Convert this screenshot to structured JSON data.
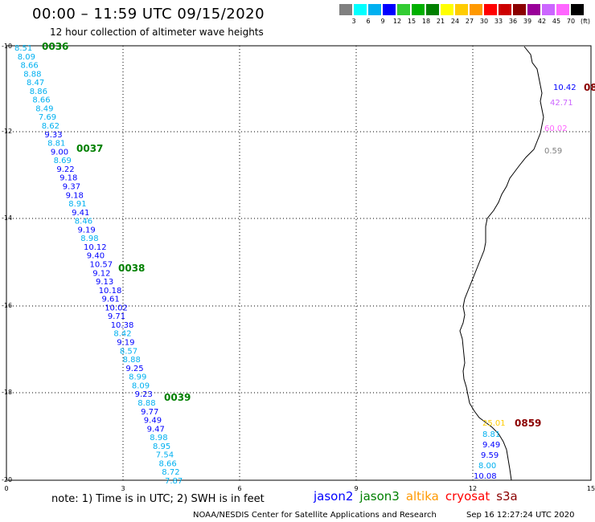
{
  "header": {
    "title": "00:00 – 11:59 UTC 09/15/2020",
    "subtitle": "12 hour collection of altimeter wave heights"
  },
  "colorbar": {
    "colors": [
      "#808080",
      "#00ffff",
      "#00b0f0",
      "#0000ff",
      "#33cc33",
      "#00b000",
      "#008000",
      "#ffff00",
      "#ffcc00",
      "#ff9900",
      "#ff0000",
      "#cc0000",
      "#8b0000",
      "#990099",
      "#cc66ff",
      "#ff66ff",
      "#000000"
    ],
    "labels": [
      "3",
      "6",
      "9",
      "12",
      "15",
      "18",
      "21",
      "24",
      "27",
      "30",
      "33",
      "36",
      "39",
      "42",
      "45",
      "70"
    ],
    "unit": "(ft)"
  },
  "axes": {
    "x_ticks": [
      "0",
      "3",
      "6",
      "9",
      "12",
      "15"
    ],
    "y_ticks": [
      "-10",
      "-12",
      "-14",
      "-16",
      "-18",
      "-20"
    ]
  },
  "passes": [
    {
      "id": "0036",
      "color": "#008000"
    },
    {
      "id": "0037",
      "color": "#008000"
    },
    {
      "id": "0038",
      "color": "#008000"
    },
    {
      "id": "0039",
      "color": "#008000"
    },
    {
      "id": "0859",
      "color": "#8b0000"
    },
    {
      "id": "08",
      "color": "#8b0000"
    }
  ],
  "track_left": [
    {
      "v": "8.51",
      "c": "#00b0f0"
    },
    {
      "v": "8.09",
      "c": "#00b0f0"
    },
    {
      "v": "8.66",
      "c": "#00b0f0"
    },
    {
      "v": "8.88",
      "c": "#00b0f0"
    },
    {
      "v": "8.47",
      "c": "#00b0f0"
    },
    {
      "v": "8.86",
      "c": "#00b0f0"
    },
    {
      "v": "8.66",
      "c": "#00b0f0"
    },
    {
      "v": "8.49",
      "c": "#00b0f0"
    },
    {
      "v": "7.69",
      "c": "#00b0f0"
    },
    {
      "v": "8.62",
      "c": "#00b0f0"
    },
    {
      "v": "9.33",
      "c": "#0000ff"
    },
    {
      "v": "8.81",
      "c": "#00b0f0"
    },
    {
      "v": "9.00",
      "c": "#0000ff"
    },
    {
      "v": "8.69",
      "c": "#00b0f0"
    },
    {
      "v": "9.22",
      "c": "#0000ff"
    },
    {
      "v": "9.18",
      "c": "#0000ff"
    },
    {
      "v": "9.37",
      "c": "#0000ff"
    },
    {
      "v": "9.18",
      "c": "#0000ff"
    },
    {
      "v": "8.91",
      "c": "#00b0f0"
    },
    {
      "v": "9.41",
      "c": "#0000ff"
    },
    {
      "v": "8.46",
      "c": "#00b0f0"
    },
    {
      "v": "9.19",
      "c": "#0000ff"
    },
    {
      "v": "8.98",
      "c": "#00b0f0"
    },
    {
      "v": "10.12",
      "c": "#0000ff"
    },
    {
      "v": "9.40",
      "c": "#0000ff"
    },
    {
      "v": "10.57",
      "c": "#0000ff"
    },
    {
      "v": "9.12",
      "c": "#0000ff"
    },
    {
      "v": "9.13",
      "c": "#0000ff"
    },
    {
      "v": "10.18",
      "c": "#0000ff"
    },
    {
      "v": "9.61",
      "c": "#0000ff"
    },
    {
      "v": "10.02",
      "c": "#0000ff"
    },
    {
      "v": "9.71",
      "c": "#0000ff"
    },
    {
      "v": "10.38",
      "c": "#0000ff"
    },
    {
      "v": "8.42",
      "c": "#00b0f0"
    },
    {
      "v": "9.19",
      "c": "#0000ff"
    },
    {
      "v": "8.57",
      "c": "#00b0f0"
    },
    {
      "v": "8.88",
      "c": "#00b0f0"
    },
    {
      "v": "9.25",
      "c": "#0000ff"
    },
    {
      "v": "8.99",
      "c": "#00b0f0"
    },
    {
      "v": "8.09",
      "c": "#00b0f0"
    },
    {
      "v": "9.23",
      "c": "#0000ff"
    },
    {
      "v": "8.88",
      "c": "#00b0f0"
    },
    {
      "v": "9.77",
      "c": "#0000ff"
    },
    {
      "v": "9.49",
      "c": "#0000ff"
    },
    {
      "v": "9.47",
      "c": "#0000ff"
    },
    {
      "v": "8.98",
      "c": "#00b0f0"
    },
    {
      "v": "8.95",
      "c": "#00b0f0"
    },
    {
      "v": "7.54",
      "c": "#00b0f0"
    },
    {
      "v": "8.66",
      "c": "#00b0f0"
    },
    {
      "v": "8.72",
      "c": "#00b0f0"
    },
    {
      "v": "7.87",
      "c": "#00b0f0"
    }
  ],
  "track_right_top": [
    {
      "v": "10.42",
      "c": "#0000ff"
    },
    {
      "v": "42.71",
      "c": "#cc66ff"
    },
    {
      "v": "60.02",
      "c": "#ff66ff"
    },
    {
      "v": "0.59",
      "c": "#808080"
    }
  ],
  "track_right_bottom": [
    {
      "v": "25.01",
      "c": "#ffcc00"
    },
    {
      "v": "8.81",
      "c": "#00b0f0"
    },
    {
      "v": "9.49",
      "c": "#0000ff"
    },
    {
      "v": "9.59",
      "c": "#0000ff"
    },
    {
      "v": "8.00",
      "c": "#00b0f0"
    },
    {
      "v": "10.08",
      "c": "#0000ff"
    }
  ],
  "footer": {
    "note": "note: 1) Time is in UTC; 2) SWH is in feet",
    "satellites": [
      {
        "name": "jason2",
        "color": "#0000ff"
      },
      {
        "name": "jason3",
        "color": "#008000"
      },
      {
        "name": "altika",
        "color": "#ff9900"
      },
      {
        "name": "cryosat",
        "color": "#ff0000"
      },
      {
        "name": "s3a",
        "color": "#8b0000"
      }
    ],
    "credit": "NOAA/NESDIS Center for Satellite Applications and Research",
    "timestamp": "Sep 16 12:27:24 UTC 2020"
  }
}
